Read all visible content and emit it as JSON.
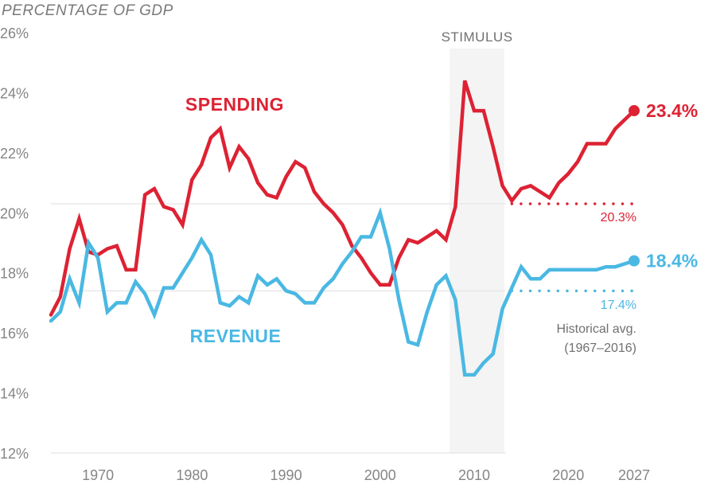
{
  "chart_data": {
    "type": "line",
    "title": "",
    "ylabel": "PERCENTAGE OF GDP",
    "xlabel": "",
    "ylim": [
      12,
      26
    ],
    "xlim": [
      1965,
      2027
    ],
    "grid": false,
    "y_ticks": [
      12,
      14,
      16,
      18,
      20,
      22,
      24,
      26
    ],
    "y_tick_labels": [
      "12%",
      "14%",
      "16%",
      "18%",
      "20%",
      "22%",
      "24%",
      "26%"
    ],
    "x_ticks": [
      1970,
      1980,
      1990,
      2000,
      2010,
      2020,
      2027
    ],
    "x_tick_labels": [
      "1970",
      "1980",
      "1990",
      "2000",
      "2010",
      "2020",
      "2027"
    ],
    "x": [
      1965,
      1966,
      1967,
      1968,
      1969,
      1970,
      1971,
      1972,
      1973,
      1974,
      1975,
      1976,
      1977,
      1978,
      1979,
      1980,
      1981,
      1982,
      1983,
      1984,
      1985,
      1986,
      1987,
      1988,
      1989,
      1990,
      1991,
      1992,
      1993,
      1994,
      1995,
      1996,
      1997,
      1998,
      1999,
      2000,
      2001,
      2002,
      2003,
      2004,
      2005,
      2006,
      2007,
      2008,
      2009,
      2010,
      2011,
      2012,
      2013,
      2014,
      2015,
      2016,
      2017,
      2018,
      2019,
      2020,
      2021,
      2022,
      2023,
      2024,
      2025,
      2026,
      2027
    ],
    "series": [
      {
        "name": "SPENDING",
        "color": "#dd2233",
        "values": [
          16.6,
          17.2,
          18.8,
          19.8,
          18.7,
          18.6,
          18.8,
          18.9,
          18.1,
          18.1,
          20.6,
          20.8,
          20.2,
          20.1,
          19.6,
          21.1,
          21.6,
          22.5,
          22.8,
          21.5,
          22.2,
          21.8,
          21.0,
          20.6,
          20.5,
          21.2,
          21.7,
          21.5,
          20.7,
          20.3,
          20.0,
          19.6,
          18.9,
          18.5,
          18.0,
          17.6,
          17.6,
          18.5,
          19.1,
          19.0,
          19.2,
          19.4,
          19.1,
          20.2,
          24.4,
          23.4,
          23.4,
          22.2,
          20.9,
          20.4,
          20.8,
          20.9,
          20.7,
          20.5,
          21.0,
          21.3,
          21.7,
          22.3,
          22.3,
          22.3,
          22.8,
          23.1,
          23.4
        ],
        "end_label": "23.4%",
        "historical_avg": 20.3,
        "historical_avg_label": "20.3%"
      },
      {
        "name": "REVENUE",
        "color": "#4ab8e3",
        "values": [
          16.4,
          16.7,
          17.8,
          17.0,
          19.0,
          18.5,
          16.7,
          17.0,
          17.0,
          17.7,
          17.3,
          16.6,
          17.5,
          17.5,
          18.0,
          18.5,
          19.1,
          18.6,
          17.0,
          16.9,
          17.2,
          17.0,
          17.9,
          17.6,
          17.8,
          17.4,
          17.3,
          17.0,
          17.0,
          17.5,
          17.8,
          18.3,
          18.7,
          19.2,
          19.2,
          20.0,
          18.8,
          17.1,
          15.7,
          15.6,
          16.7,
          17.6,
          17.9,
          17.1,
          14.6,
          14.6,
          15.0,
          15.3,
          16.8,
          17.5,
          18.2,
          17.8,
          17.8,
          18.1,
          18.1,
          18.1,
          18.1,
          18.1,
          18.1,
          18.2,
          18.2,
          18.3,
          18.4
        ],
        "end_label": "18.4%",
        "historical_avg": 17.4,
        "historical_avg_label": "17.4%"
      }
    ],
    "shaded_region": {
      "label": "STIMULUS",
      "x_start": 2007.4,
      "x_end": 2013.2,
      "color": "#f4f4f4"
    },
    "historical_avg_period": [
      2014,
      2027
    ],
    "annotations": {
      "historical_note_line1": "Historical avg.",
      "historical_note_line2": "(1967–2016)"
    },
    "legend": "inline"
  },
  "colors": {
    "tick_text": "#858585",
    "ref_line": "#e8e8e8"
  }
}
